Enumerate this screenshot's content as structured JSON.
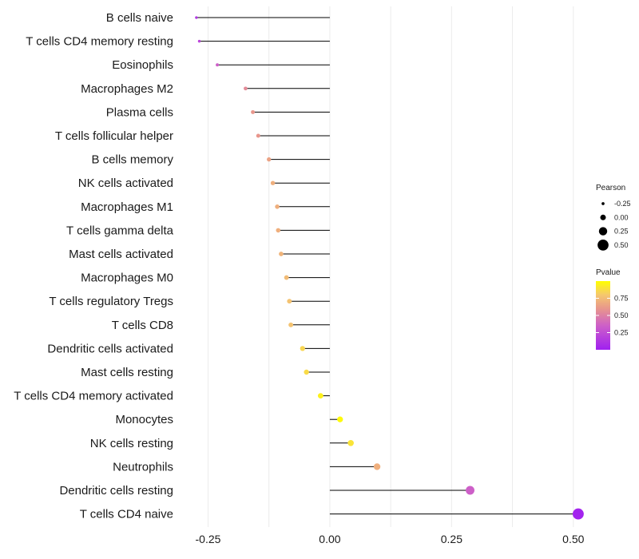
{
  "chart_data": {
    "type": "lollipop",
    "title": "",
    "xlabel": "",
    "ylabel": "",
    "xlim": [
      -0.3,
      0.52
    ],
    "xticks": [
      -0.25,
      0.0,
      0.25,
      0.5
    ],
    "xtick_labels": [
      "-0.25",
      "0.00",
      "0.25",
      "0.50"
    ],
    "grid": true,
    "categories": [
      "B cells naive",
      "T cells CD4 memory resting",
      "Eosinophils",
      "Macrophages M2",
      "Plasma cells",
      "T cells follicular helper",
      "B cells memory",
      "NK cells activated",
      "Macrophages M1",
      "T cells gamma delta",
      "Mast cells activated",
      "Macrophages M0",
      "T cells regulatory  Tregs ",
      "T cells CD8",
      "Dendritic cells activated",
      "Mast cells resting",
      "T cells CD4 memory activated",
      "Monocytes",
      "NK cells resting",
      "Neutrophils",
      "Dendritic cells resting",
      "T cells CD4 naive"
    ],
    "pearson": [
      -0.274,
      -0.268,
      -0.231,
      -0.173,
      -0.158,
      -0.147,
      -0.125,
      -0.117,
      -0.108,
      -0.106,
      -0.1,
      -0.089,
      -0.083,
      -0.08,
      -0.056,
      -0.048,
      -0.019,
      0.021,
      0.043,
      0.097,
      0.288,
      0.51
    ],
    "pvalue": [
      0.12,
      0.2,
      0.35,
      0.55,
      0.6,
      0.6,
      0.65,
      0.7,
      0.7,
      0.7,
      0.72,
      0.75,
      0.78,
      0.78,
      0.85,
      0.87,
      0.95,
      0.98,
      0.9,
      0.7,
      0.35,
      0.02
    ],
    "legend": {
      "size_title": "Pearson",
      "size_values": [
        -0.25,
        0.0,
        0.25,
        0.5
      ],
      "size_labels": [
        "-0.25",
        "0.00",
        "0.25",
        "0.50"
      ],
      "color_title": "Pvalue",
      "color_ticks": [
        0.25,
        0.5,
        0.75
      ],
      "color_labels": [
        "0.25",
        "0.50",
        "0.75"
      ],
      "color_range": [
        0.0,
        1.0
      ],
      "color_low": "#a020f0",
      "color_high": "#ffff00",
      "placement": "right"
    },
    "colors": {
      "segment": "#000000",
      "grid": "#ebebeb"
    }
  }
}
